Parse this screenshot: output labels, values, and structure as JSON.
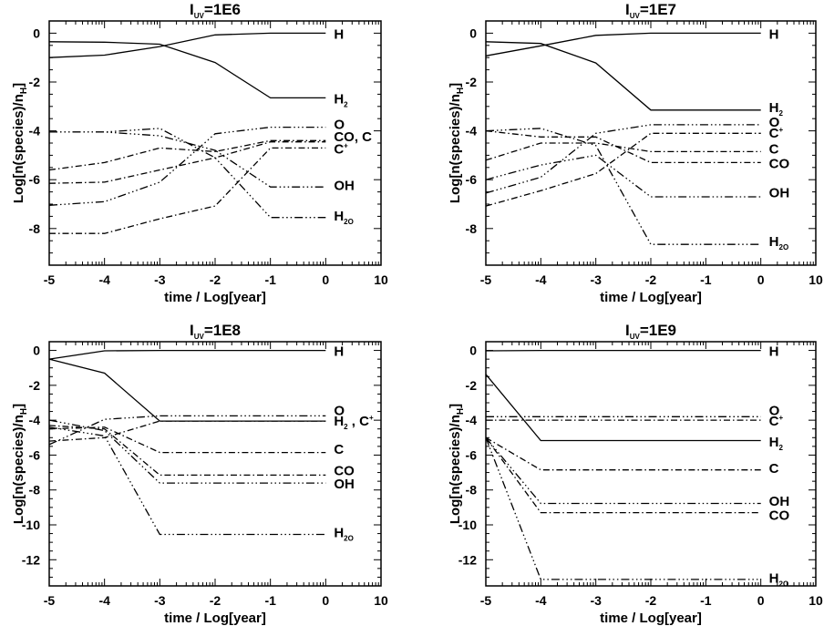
{
  "chart_data": [
    {
      "type": "line",
      "title": "I_UV=1E6",
      "xlabel": "time / Log[year]",
      "ylabel": "Log[n(species)/n_H]",
      "x": [
        -5,
        -4,
        -3,
        -2,
        -1,
        0
      ],
      "xticks": [
        "-5",
        "-4",
        "-3",
        "-2",
        "-1",
        "0",
        "10"
      ],
      "yticks": [
        0,
        -2,
        -4,
        -6,
        -8
      ],
      "ylim": [
        -9.5,
        0.5
      ],
      "grid": false,
      "series": [
        {
          "name": "H",
          "values": [
            -1.0,
            -0.9,
            -0.55,
            -0.07,
            0,
            0
          ],
          "style": "solid"
        },
        {
          "name": "H_2",
          "values": [
            -0.35,
            -0.37,
            -0.45,
            -1.2,
            -2.65,
            -2.65
          ],
          "style": "solid"
        },
        {
          "name": "O",
          "values": [
            -7.05,
            -6.9,
            -6.1,
            -4.12,
            -3.85,
            -3.85
          ],
          "style": "dash-dot-dot-dot"
        },
        {
          "name": "CO",
          "values": [
            -6.15,
            -6.1,
            -5.6,
            -5.1,
            -4.45,
            -4.45
          ],
          "style": "dash-dot"
        },
        {
          "name": "C",
          "values": [
            -5.6,
            -5.3,
            -4.7,
            -4.85,
            -4.4,
            -4.4
          ],
          "style": "dash-dot"
        },
        {
          "name": "C^+",
          "values": [
            -8.2,
            -8.2,
            -7.6,
            -7.08,
            -4.7,
            -4.7
          ],
          "style": "dash-dot"
        },
        {
          "name": "OH",
          "values": [
            -4.05,
            -4.05,
            -4.2,
            -4.8,
            -6.3,
            -6.3
          ],
          "style": "dash-dot-dot-dot"
        },
        {
          "name": "H_2O",
          "values": [
            -4.05,
            -4.05,
            -3.9,
            -5.1,
            -7.55,
            -7.55
          ],
          "style": "dash-dot-dot-dot"
        }
      ],
      "labels": [
        "H",
        "H_2",
        "O",
        "CO, C",
        "C^+",
        "OH",
        "H_2O"
      ]
    },
    {
      "type": "line",
      "title": "I_UV=1E7",
      "xlabel": "time / Log[year]",
      "ylabel": "Log[n(species)/n_H]",
      "x": [
        -5,
        -4,
        -3,
        -2,
        -1,
        0
      ],
      "xticks": [
        "-5",
        "-4",
        "-3",
        "-2",
        "-1",
        "0",
        "10"
      ],
      "yticks": [
        0,
        -2,
        -4,
        -6,
        -8
      ],
      "ylim": [
        -9.5,
        0.5
      ],
      "grid": false,
      "series": [
        {
          "name": "H",
          "values": [
            -0.93,
            -0.52,
            -0.09,
            0,
            0,
            0
          ],
          "style": "solid"
        },
        {
          "name": "H_2",
          "values": [
            -0.35,
            -0.42,
            -1.22,
            -3.15,
            -3.15,
            -3.15
          ],
          "style": "solid"
        },
        {
          "name": "O",
          "values": [
            -6.55,
            -5.9,
            -4.1,
            -3.75,
            -3.75,
            -3.75
          ],
          "style": "dash-dot-dot-dot"
        },
        {
          "name": "C^+",
          "values": [
            -7.08,
            -6.45,
            -5.75,
            -4.1,
            -4.1,
            -4.1
          ],
          "style": "dash-dot"
        },
        {
          "name": "C",
          "values": [
            -5.2,
            -4.5,
            -4.5,
            -4.85,
            -4.85,
            -4.85
          ],
          "style": "dash-dot"
        },
        {
          "name": "CO",
          "values": [
            -4.0,
            -4.25,
            -4.25,
            -5.3,
            -5.3,
            -5.3
          ],
          "style": "dash-dot"
        },
        {
          "name": "OH",
          "values": [
            -6.0,
            -5.4,
            -5.0,
            -6.7,
            -6.7,
            -6.7
          ],
          "style": "dash-dot-dot-dot"
        },
        {
          "name": "H_2O",
          "values": [
            -4.0,
            -3.9,
            -4.6,
            -8.65,
            -8.65,
            -8.65
          ],
          "style": "dash-dot-dot-dot"
        }
      ],
      "labels": [
        "H",
        "H_2",
        "O",
        "C^+",
        "C",
        "CO",
        "OH",
        "H_2O"
      ]
    },
    {
      "type": "line",
      "title": "I_UV=1E8",
      "xlabel": "time / Log[year]",
      "ylabel": "Log[n(species)/n_H]",
      "x": [
        -5,
        -4,
        -3,
        -2,
        -1,
        0
      ],
      "xticks": [
        "-5",
        "-4",
        "-3",
        "-2",
        "-1",
        "0",
        "10"
      ],
      "yticks": [
        0,
        -2,
        -4,
        -6,
        -8,
        -10,
        -12
      ],
      "ylim": [
        -13.5,
        0.5
      ],
      "grid": false,
      "series": [
        {
          "name": "H",
          "values": [
            -0.5,
            -0.02,
            0,
            0,
            0,
            0
          ],
          "style": "solid"
        },
        {
          "name": "H_2",
          "values": [
            -0.5,
            -1.3,
            -4.05,
            -4.05,
            -4.05,
            -4.05
          ],
          "style": "solid"
        },
        {
          "name": "O",
          "values": [
            -5.4,
            -3.95,
            -3.75,
            -3.75,
            -3.75,
            -3.75
          ],
          "style": "dash-dot-dot-dot"
        },
        {
          "name": "C^+",
          "values": [
            -5.2,
            -5.0,
            -4.05,
            -4.05,
            -4.05,
            -4.05
          ],
          "style": "dash-dot"
        },
        {
          "name": "C",
          "values": [
            -4.5,
            -4.4,
            -5.85,
            -5.85,
            -5.85,
            -5.85
          ],
          "style": "dash-dot"
        },
        {
          "name": "CO",
          "values": [
            -4.3,
            -4.5,
            -7.15,
            -7.15,
            -7.15,
            -7.15
          ],
          "style": "dash-dot"
        },
        {
          "name": "OH",
          "values": [
            -4.0,
            -4.6,
            -7.6,
            -7.6,
            -7.6,
            -7.6
          ],
          "style": "dash-dot-dot-dot"
        },
        {
          "name": "H_2O",
          "values": [
            -4.4,
            -4.9,
            -10.55,
            -10.55,
            -10.55,
            -10.55
          ],
          "style": "dash-dot-dot-dot"
        }
      ],
      "labels": [
        "H",
        "O",
        "H_2 , C^+",
        "C",
        "CO",
        "OH",
        "H_2O"
      ]
    },
    {
      "type": "line",
      "title": "I_UV=1E9",
      "xlabel": "time / Log[year]",
      "ylabel": "Log[n(species)/n_H]",
      "x": [
        -5,
        -4,
        -3,
        -2,
        -1,
        0
      ],
      "xticks": [
        "-5",
        "-4",
        "-3",
        "-2",
        "-1",
        "0",
        "10"
      ],
      "yticks": [
        0,
        -2,
        -4,
        -6,
        -8,
        -10,
        -12
      ],
      "ylim": [
        -13.5,
        0.5
      ],
      "grid": false,
      "series": [
        {
          "name": "H",
          "values": [
            -0.02,
            0,
            0,
            0,
            0,
            0
          ],
          "style": "solid"
        },
        {
          "name": "H_2",
          "values": [
            -1.37,
            -5.17,
            -5.17,
            -5.17,
            -5.17,
            -5.17
          ],
          "style": "solid"
        },
        {
          "name": "O",
          "values": [
            -3.8,
            -3.8,
            -3.8,
            -3.8,
            -3.8,
            -3.8
          ],
          "style": "dash-dot-dot-dot"
        },
        {
          "name": "C^+",
          "values": [
            -4.0,
            -4.0,
            -4.0,
            -4.0,
            -4.0,
            -4.0
          ],
          "style": "dash-dot"
        },
        {
          "name": "C",
          "values": [
            -5.0,
            -6.85,
            -6.85,
            -6.85,
            -6.85,
            -6.85
          ],
          "style": "dash-dot"
        },
        {
          "name": "OH",
          "values": [
            -5.0,
            -8.77,
            -8.77,
            -8.77,
            -8.77,
            -8.77
          ],
          "style": "dash-dot-dot-dot"
        },
        {
          "name": "CO",
          "values": [
            -5.0,
            -9.3,
            -9.3,
            -9.3,
            -9.3,
            -9.3
          ],
          "style": "dash-dot"
        },
        {
          "name": "H_2O",
          "values": [
            -5.0,
            -13.13,
            -13.13,
            -13.13,
            -13.13,
            -13.13
          ],
          "style": "dash-dot-dot-dot"
        }
      ],
      "labels": [
        "H",
        "O",
        "C^+",
        "H_2",
        "C",
        "OH",
        "CO",
        "H_2O"
      ]
    }
  ]
}
